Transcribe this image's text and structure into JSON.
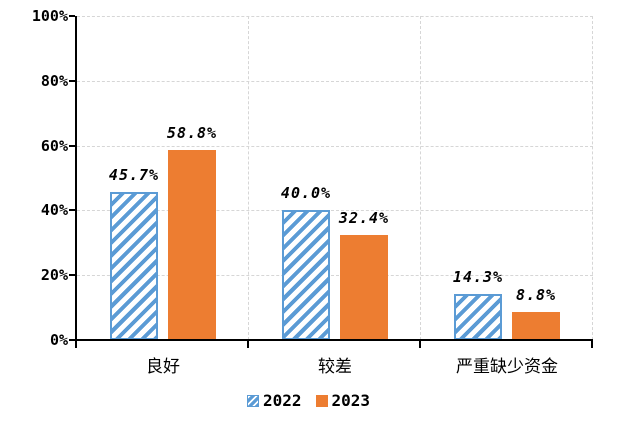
{
  "chart_data": {
    "type": "bar",
    "title": "",
    "categories": [
      "良好",
      "较差",
      "严重缺少资金"
    ],
    "series": [
      {
        "name": "2022",
        "color": "#5B9BD5",
        "fill": "hatched",
        "values": [
          45.7,
          40.0,
          14.3
        ],
        "labels": [
          "45.7%",
          "40.0%",
          "14.3%"
        ]
      },
      {
        "name": "2023",
        "color": "#ED7D31",
        "fill": "solid",
        "values": [
          58.8,
          32.4,
          8.8
        ],
        "labels": [
          "58.8%",
          "32.4%",
          "8.8%"
        ]
      }
    ],
    "y_axis": {
      "min": 0,
      "max": 100,
      "tick_interval": 20,
      "tick_labels": [
        "0%",
        "20%",
        "40%",
        "60%",
        "80%",
        "100%"
      ]
    },
    "x_axis_labels": [
      "良好",
      "较差",
      "严重缺少资金"
    ],
    "legend": {
      "position": "bottom",
      "entries": [
        "2022",
        "2023"
      ]
    },
    "grid": {
      "horizontal": true,
      "vertical": true,
      "line_style": "dashed",
      "color": "#D6D6D6"
    },
    "colors": {
      "axis": "#000000",
      "text": "#000000",
      "background": "#FFFFFF"
    }
  }
}
